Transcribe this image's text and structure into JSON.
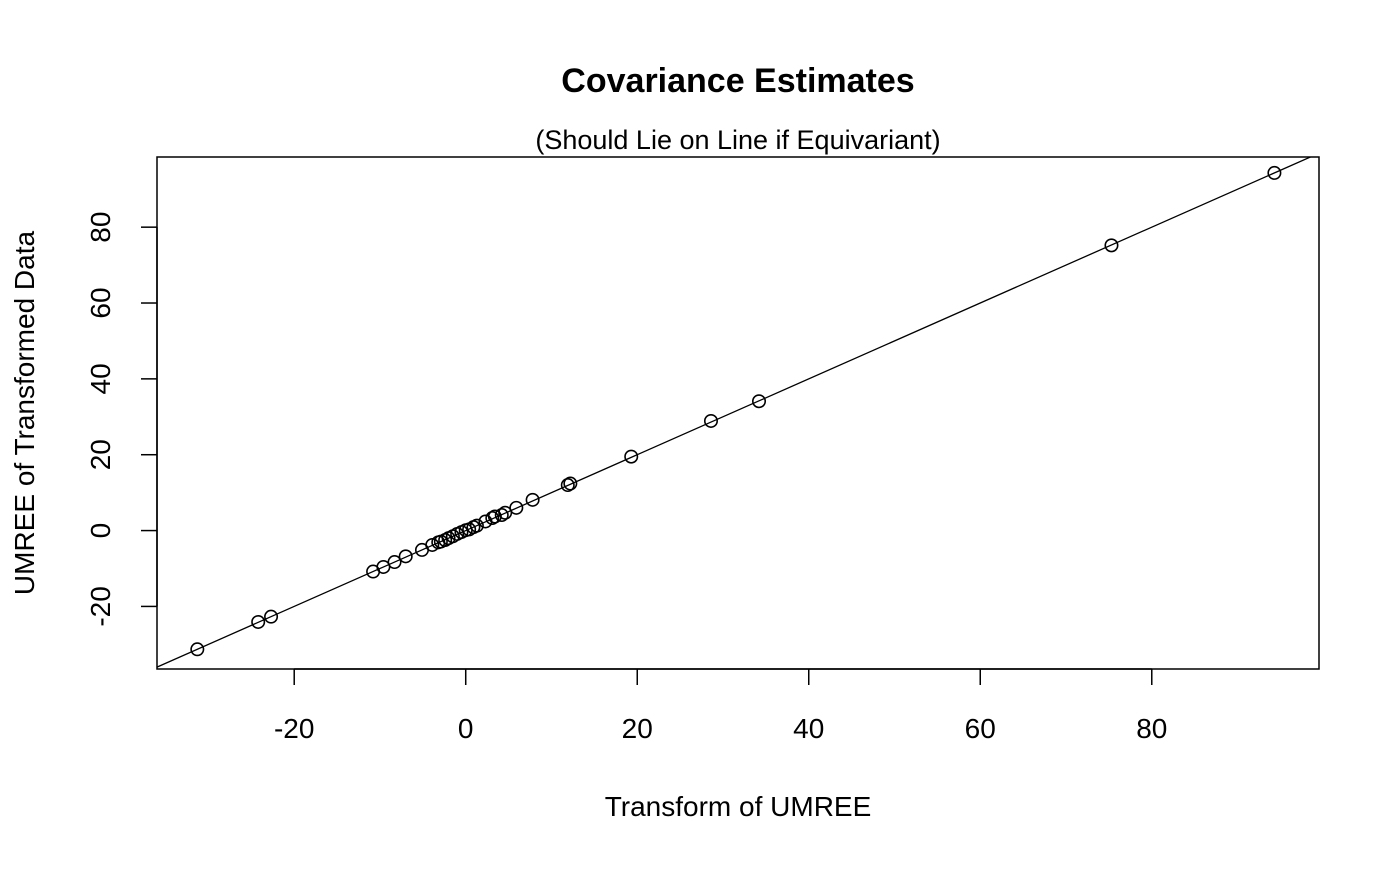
{
  "chart_data": {
    "type": "scatter",
    "title": "Covariance Estimates",
    "subtitle": "(Should Lie on Line if Equivariant)",
    "xlabel": "Transform of UMREE",
    "ylabel": "UMREE of Transformed Data",
    "xlim": [
      -36,
      99.5
    ],
    "ylim": [
      -36.5,
      98.5
    ],
    "xticks": [
      -20,
      0,
      20,
      40,
      60,
      80
    ],
    "yticks": [
      -20,
      0,
      20,
      40,
      60,
      80
    ],
    "xtick_labels": [
      "-20",
      "0",
      "20",
      "40",
      "60",
      "80"
    ],
    "ytick_labels": [
      "-20",
      "0",
      "20",
      "40",
      "60",
      "80"
    ],
    "reference_line": {
      "intercept": 0,
      "slope": 1
    },
    "series": [
      {
        "marker": "open-circle",
        "points": [
          [
            94.3,
            94.3
          ],
          [
            75.3,
            75.2
          ],
          [
            34.2,
            34.1
          ],
          [
            28.6,
            28.9
          ],
          [
            19.3,
            19.5
          ],
          [
            12.2,
            12.4
          ],
          [
            11.9,
            12.0
          ],
          [
            7.8,
            8.1
          ],
          [
            5.9,
            6.0
          ],
          [
            4.6,
            4.7
          ],
          [
            4.2,
            4.1
          ],
          [
            3.4,
            3.7
          ],
          [
            3.1,
            3.3
          ],
          [
            2.3,
            2.4
          ],
          [
            1.3,
            1.3
          ],
          [
            0.9,
            0.9
          ],
          [
            0.4,
            0.3
          ],
          [
            0.0,
            0.1
          ],
          [
            -0.5,
            -0.4
          ],
          [
            -1.0,
            -0.9
          ],
          [
            -1.5,
            -1.5
          ],
          [
            -2.0,
            -2.0
          ],
          [
            -2.4,
            -2.5
          ],
          [
            -2.9,
            -2.9
          ],
          [
            -3.2,
            -3.1
          ],
          [
            -3.9,
            -3.8
          ],
          [
            -5.1,
            -5.1
          ],
          [
            -7.0,
            -6.8
          ],
          [
            -8.3,
            -8.3
          ],
          [
            -9.6,
            -9.6
          ],
          [
            -10.8,
            -10.8
          ],
          [
            -22.7,
            -22.7
          ],
          [
            -24.2,
            -24.1
          ],
          [
            -31.3,
            -31.3
          ]
        ]
      }
    ]
  }
}
